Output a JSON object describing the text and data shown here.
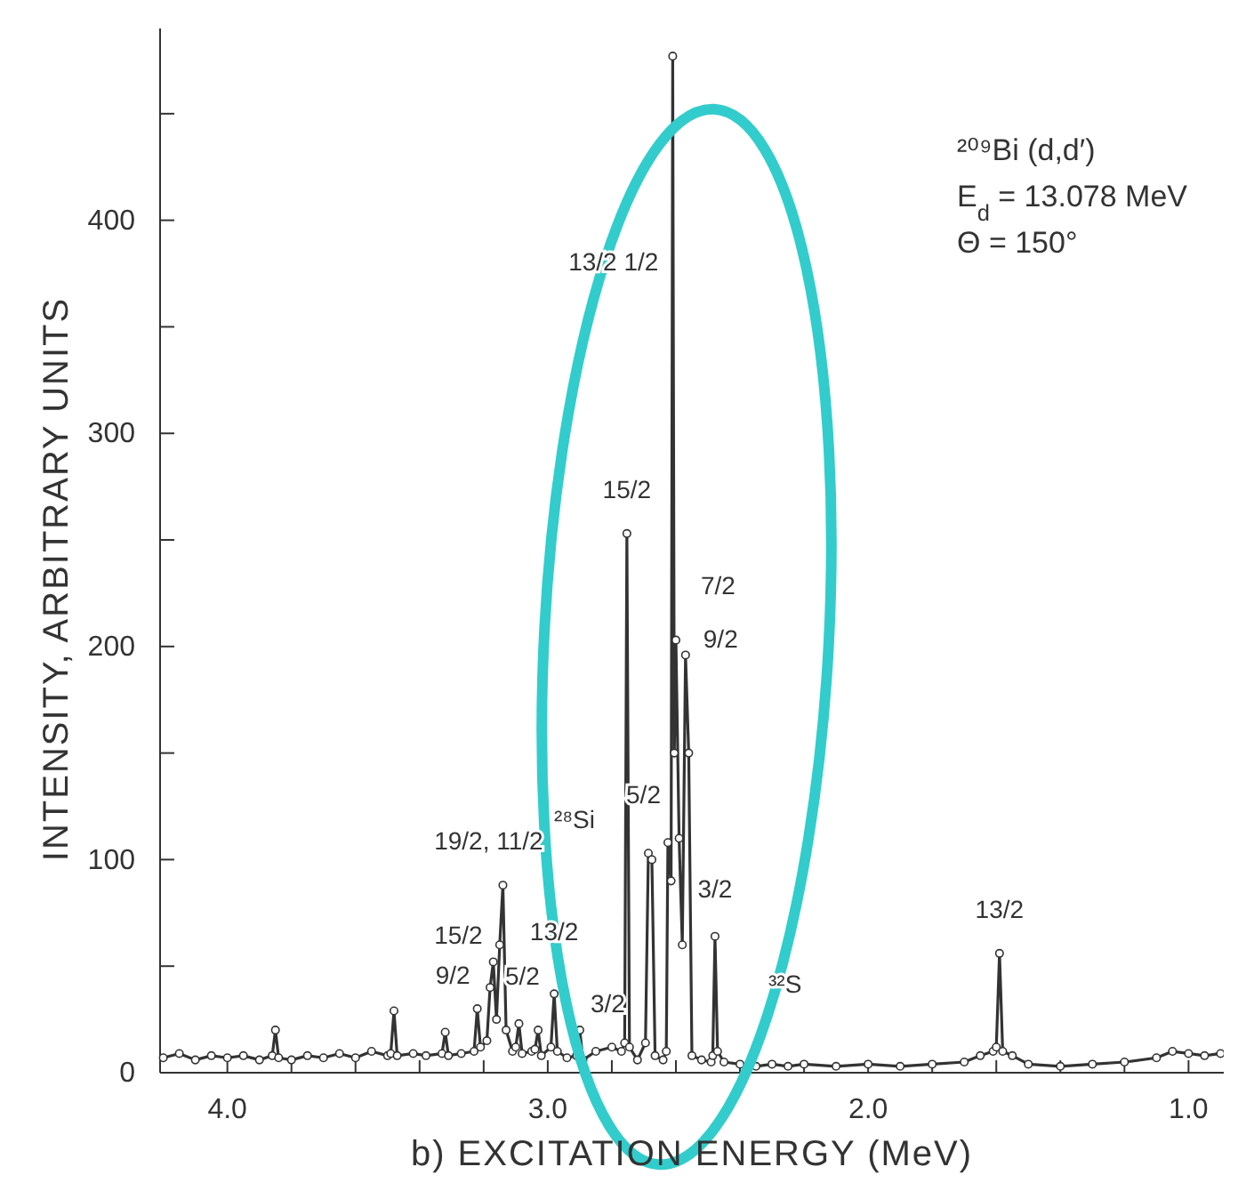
{
  "chart_data": {
    "type": "line",
    "xlabel": "b) EXCITATION ENERGY (MeV)",
    "ylabel": "INTENSITY, ARBITRARY UNITS",
    "xlim": [
      4.21,
      0.89
    ],
    "ylim": [
      0,
      490
    ],
    "xticks": [
      {
        "value": 4.0,
        "label": "4.0"
      },
      {
        "value": 3.8,
        "label": null
      },
      {
        "value": 3.6,
        "label": null
      },
      {
        "value": 3.4,
        "label": null
      },
      {
        "value": 3.2,
        "label": null
      },
      {
        "value": 3.0,
        "label": "3.0"
      },
      {
        "value": 2.8,
        "label": null
      },
      {
        "value": 2.6,
        "label": null
      },
      {
        "value": 2.4,
        "label": null
      },
      {
        "value": 2.2,
        "label": null
      },
      {
        "value": 2.0,
        "label": "2.0"
      },
      {
        "value": 1.8,
        "label": null
      },
      {
        "value": 1.6,
        "label": null
      },
      {
        "value": 1.4,
        "label": null
      },
      {
        "value": 1.2,
        "label": null
      },
      {
        "value": 1.0,
        "label": "1.0"
      }
    ],
    "yticks": [
      0,
      {
        "value": 50,
        "label": null
      },
      100,
      {
        "value": 150,
        "label": null
      },
      200,
      {
        "value": 250,
        "label": null
      },
      300,
      {
        "value": 350,
        "label": null
      },
      400,
      {
        "value": 450,
        "label": null
      }
    ],
    "marker": "circle",
    "line_style": "solid",
    "series": [
      {
        "color": "#333333",
        "x": [
          4.2,
          4.15,
          4.1,
          4.05,
          4.0,
          3.95,
          3.9,
          3.86,
          3.85,
          3.84,
          3.8,
          3.75,
          3.7,
          3.65,
          3.6,
          3.55,
          3.5,
          3.49,
          3.48,
          3.47,
          3.42,
          3.38,
          3.33,
          3.32,
          3.31,
          3.27,
          3.23,
          3.22,
          3.21,
          3.19,
          3.18,
          3.17,
          3.16,
          3.15,
          3.14,
          3.13,
          3.11,
          3.1,
          3.09,
          3.08,
          3.05,
          3.04,
          3.03,
          3.02,
          2.99,
          2.98,
          2.97,
          2.94,
          2.91,
          2.9,
          2.89,
          2.85,
          2.8,
          2.77,
          2.76,
          2.753,
          2.745,
          2.72,
          2.695,
          2.686,
          2.675,
          2.665,
          2.64,
          2.63,
          2.625,
          2.615,
          2.61,
          2.605,
          2.6,
          2.59,
          2.58,
          2.57,
          2.56,
          2.55,
          2.52,
          2.49,
          2.485,
          2.478,
          2.47,
          2.45,
          2.4,
          2.35,
          2.3,
          2.25,
          2.2,
          2.1,
          2.0,
          1.9,
          1.8,
          1.7,
          1.65,
          1.61,
          1.6,
          1.59,
          1.58,
          1.55,
          1.5,
          1.4,
          1.3,
          1.2,
          1.1,
          1.05,
          1.0,
          0.95,
          0.9
        ],
        "values": [
          7,
          9,
          6,
          8,
          7,
          8,
          6,
          8,
          20,
          7,
          6,
          8,
          7,
          9,
          7,
          10,
          8,
          9,
          29,
          8,
          9,
          8,
          9,
          19,
          8,
          9,
          10,
          30,
          12,
          15,
          40,
          52,
          25,
          60,
          88,
          20,
          10,
          12,
          23,
          9,
          10,
          11,
          20,
          8,
          12,
          37,
          10,
          7,
          8,
          20,
          6,
          10,
          12,
          10,
          14,
          253,
          12,
          6,
          14,
          103,
          100,
          8,
          6,
          10,
          108,
          90,
          477,
          150,
          203,
          110,
          60,
          196,
          150,
          8,
          6,
          5,
          8,
          64,
          10,
          5,
          4,
          3,
          4,
          3,
          4,
          3,
          4,
          3,
          4,
          5,
          8,
          10,
          12,
          56,
          10,
          8,
          4,
          3,
          4,
          5,
          7,
          10,
          9,
          8,
          9
        ]
      }
    ],
    "annotations": [
      "²⁰⁹Bi (d,d′)",
      "E$_{d}$ = 13.078 MeV",
      "Θ  = 150°",
      {
        "text": "13/2  1/2",
        "x": 2.61,
        "y": 375
      },
      {
        "text": "15/2",
        "x": 2.753,
        "y": 253
      },
      {
        "text": "7/2",
        "x": 2.6,
        "y": 203
      },
      {
        "text": "9/2",
        "x": 2.57,
        "y": 196
      },
      {
        "text": "5/2",
        "x": 2.625,
        "y": 108
      },
      {
        "text": "²⁸Si",
        "x": 2.686,
        "y": 103
      },
      {
        "text": "3/2",
        "x": 2.478,
        "y": 64
      },
      {
        "text": "³²S",
        "x": 2.4,
        "y": 4
      },
      {
        "text": "19/2, 11/2",
        "x": 3.14,
        "y": 88
      },
      {
        "text": "15/2",
        "x": 3.17,
        "y": 52
      },
      {
        "text": "9/2",
        "x": 3.22,
        "y": 30
      },
      {
        "text": "5/2",
        "x": 3.09,
        "y": 23
      },
      {
        "text": "13/2",
        "x": 2.98,
        "y": 37
      },
      {
        "text": "3/2",
        "x": 2.9,
        "y": 20
      },
      {
        "text": "13/2",
        "x": 1.59,
        "y": 56
      }
    ]
  }
}
